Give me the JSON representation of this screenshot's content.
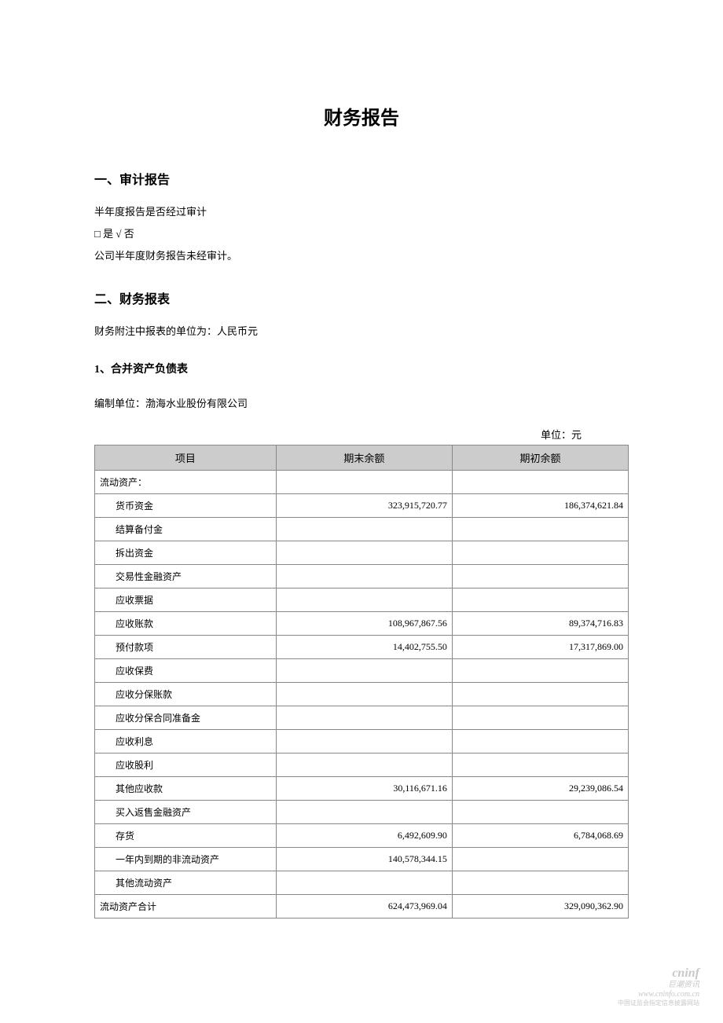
{
  "title": "财务报告",
  "section1": {
    "heading": "一、审计报告",
    "line1": "半年度报告是否经过审计",
    "line2": "□ 是 √ 否",
    "line3": "公司半年度财务报告未经审计。"
  },
  "section2": {
    "heading": "二、财务报表",
    "line1": "财务附注中报表的单位为：人民币元",
    "sub1": {
      "heading": "1、合并资产负债表",
      "compiler": "编制单位：渤海水业股份有限公司",
      "unit": "单位：元"
    }
  },
  "table": {
    "columns": [
      "项目",
      "期末余额",
      "期初余额"
    ],
    "rows": [
      {
        "item": "流动资产：",
        "indent": false,
        "end": "",
        "begin": ""
      },
      {
        "item": "货币资金",
        "indent": true,
        "end": "323,915,720.77",
        "begin": "186,374,621.84"
      },
      {
        "item": "结算备付金",
        "indent": true,
        "end": "",
        "begin": ""
      },
      {
        "item": "拆出资金",
        "indent": true,
        "end": "",
        "begin": ""
      },
      {
        "item": "交易性金融资产",
        "indent": true,
        "end": "",
        "begin": ""
      },
      {
        "item": "应收票据",
        "indent": true,
        "end": "",
        "begin": ""
      },
      {
        "item": "应收账款",
        "indent": true,
        "end": "108,967,867.56",
        "begin": "89,374,716.83"
      },
      {
        "item": "预付款项",
        "indent": true,
        "end": "14,402,755.50",
        "begin": "17,317,869.00"
      },
      {
        "item": "应收保费",
        "indent": true,
        "end": "",
        "begin": ""
      },
      {
        "item": "应收分保账款",
        "indent": true,
        "end": "",
        "begin": ""
      },
      {
        "item": "应收分保合同准备金",
        "indent": true,
        "end": "",
        "begin": ""
      },
      {
        "item": "应收利息",
        "indent": true,
        "end": "",
        "begin": ""
      },
      {
        "item": "应收股利",
        "indent": true,
        "end": "",
        "begin": ""
      },
      {
        "item": "其他应收款",
        "indent": true,
        "end": "30,116,671.16",
        "begin": "29,239,086.54"
      },
      {
        "item": "买入返售金融资产",
        "indent": true,
        "end": "",
        "begin": ""
      },
      {
        "item": "存货",
        "indent": true,
        "end": "6,492,609.90",
        "begin": "6,784,068.69"
      },
      {
        "item": "一年内到期的非流动资产",
        "indent": true,
        "end": "140,578,344.15",
        "begin": ""
      },
      {
        "item": "其他流动资产",
        "indent": true,
        "end": "",
        "begin": ""
      },
      {
        "item": "流动资产合计",
        "indent": false,
        "end": "624,473,969.04",
        "begin": "329,090,362.90"
      }
    ]
  },
  "watermark": {
    "brand": "cninf",
    "sub": "巨潮资讯",
    "url": "www.cninfo.com.cn",
    "tag": "中国证监会指定信息披露网站"
  },
  "colors": {
    "header_bg": "#cccccc",
    "border": "#888888",
    "text": "#000000",
    "watermark": "#c8c8c8",
    "background": "#ffffff"
  }
}
